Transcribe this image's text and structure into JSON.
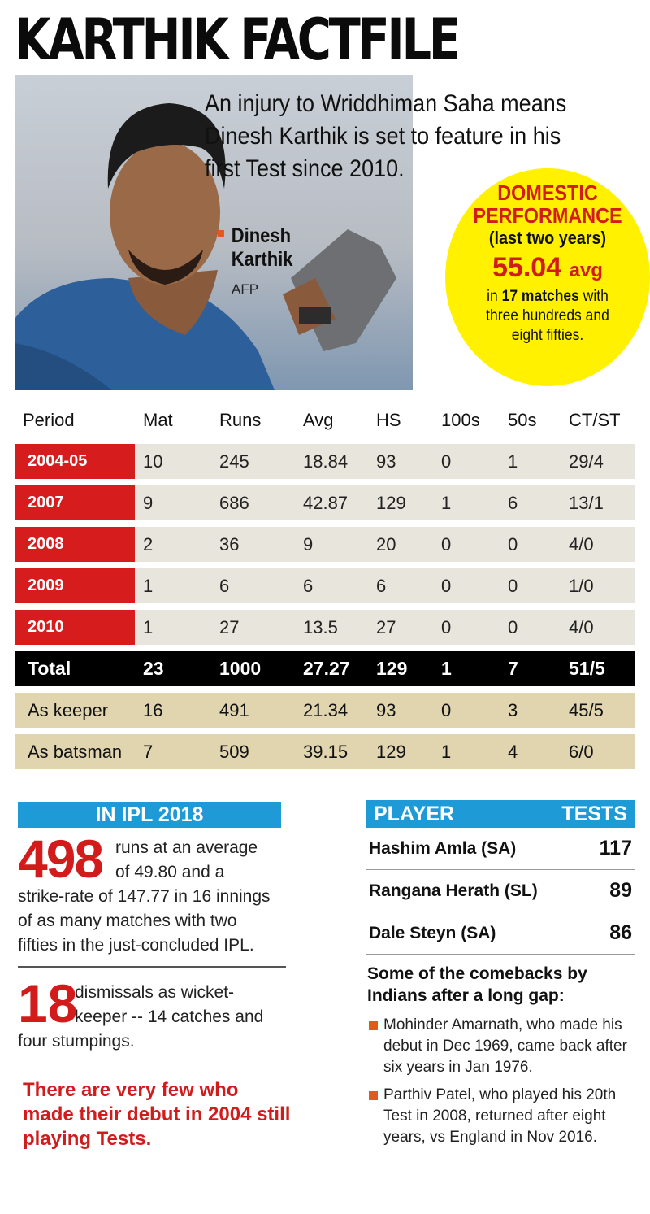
{
  "title": "KARTHIK FACTFILE",
  "intro": "An injury to Wriddhiman Saha means Dinesh Karthik is set to feature in his first Test since 2010.",
  "photo": {
    "caption_line1": "Dinesh",
    "caption_line2": "Karthik",
    "credit": "AFP"
  },
  "domestic": {
    "heading1": "DOMESTIC",
    "heading2": "PERFORMANCE",
    "period": "(last two years)",
    "avg_value": "55.04",
    "avg_label": "avg",
    "text_in": "in",
    "matches": "17 matches",
    "text_with": "with",
    "text_rest1": "three hundreds and",
    "text_rest2": "eight fifties."
  },
  "stats": {
    "columns": [
      "Period",
      "Mat",
      "Runs",
      "Avg",
      "HS",
      "100s",
      "50s",
      "CT/ST"
    ],
    "rows": [
      [
        "2004-05",
        "10",
        "245",
        "18.84",
        "93",
        "0",
        "1",
        "29/4"
      ],
      [
        "2007",
        "9",
        "686",
        "42.87",
        "129",
        "1",
        "6",
        "13/1"
      ],
      [
        "2008",
        "2",
        "36",
        "9",
        "20",
        "0",
        "0",
        "4/0"
      ],
      [
        "2009",
        "1",
        "6",
        "6",
        "6",
        "0",
        "0",
        "1/0"
      ],
      [
        "2010",
        "1",
        "27",
        "13.5",
        "27",
        "0",
        "0",
        "4/0"
      ]
    ],
    "total": [
      "Total",
      "23",
      "1000",
      "27.27",
      "129",
      "1",
      "7",
      "51/5"
    ],
    "as_keeper": [
      "As keeper",
      "16",
      "491",
      "21.34",
      "93",
      "0",
      "3",
      "45/5"
    ],
    "as_batsman": [
      "As batsman",
      "7",
      "509",
      "39.15",
      "129",
      "1",
      "4",
      "6/0"
    ]
  },
  "ipl": {
    "heading": "IN IPL 2018",
    "runs": "498",
    "line1": "runs at an average",
    "line2": "of 49.80 and a",
    "line3": "strike-rate of 147.77 in 16 innings",
    "line4": "of as many matches with two",
    "line5": "fifties in the just-concluded IPL.",
    "dismissals": "18",
    "d_line1": "dismissals as wicket-",
    "d_line2": "keeper -- 14 catches and",
    "d_line3": "four stumpings."
  },
  "note": "There are very few who made their debut in 2004 still playing Tests.",
  "players": {
    "col_player": "PLAYER",
    "col_tests": "TESTS",
    "rows": [
      {
        "name": "Hashim Amla (SA)",
        "tests": "117"
      },
      {
        "name": "Rangana Herath (SL)",
        "tests": "89"
      },
      {
        "name": "Dale Steyn (SA)",
        "tests": "86"
      }
    ]
  },
  "comebacks": {
    "heading": "Some of the comebacks by Indians after a long gap:",
    "items": [
      "Mohinder Amarnath, who made his debut in Dec 1969, came back after six years in Jan 1976.",
      "Parthiv Patel, who played his 20th Test in 2008, returned after eight years, vs England in Nov 2016."
    ]
  },
  "colors": {
    "red": "#d61c1c",
    "yellow": "#fff100",
    "blue": "#1e9ad6",
    "tan": "#e1d5b0",
    "bullet_orange": "#e05a1c"
  }
}
